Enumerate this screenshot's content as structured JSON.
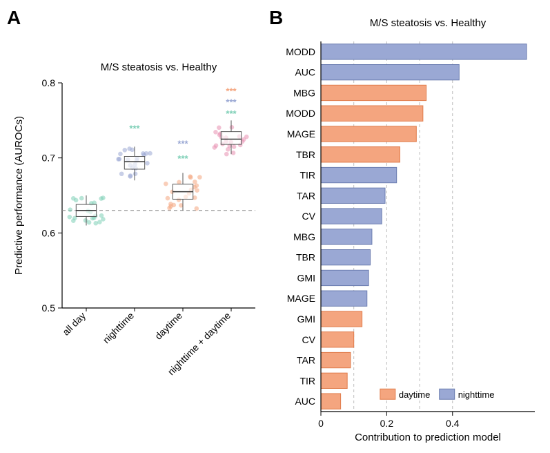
{
  "panelA": {
    "label": "A",
    "title": "M/S steatosis vs. Healthy",
    "ylabel": "Predictive performance (AUROCs)",
    "ylim": [
      0.5,
      0.8
    ],
    "yticks": [
      0.5,
      0.6,
      0.7,
      0.8
    ],
    "ref_line": 0.63,
    "categories": [
      "all day",
      "nighttime",
      "daytime",
      "nighttime + daytime"
    ],
    "colors": {
      "all day": "#7dcfb6",
      "nighttime": "#9aa8d4",
      "daytime": "#f4a57f",
      "nighttime + daytime": "#e88fb0"
    },
    "medians": {
      "all day": 0.63,
      "nighttime": 0.695,
      "daytime": 0.655,
      "nighttime + daytime": 0.725
    },
    "iqr": {
      "all day": [
        0.622,
        0.638
      ],
      "nighttime": [
        0.685,
        0.702
      ],
      "daytime": [
        0.645,
        0.665
      ],
      "nighttime + daytime": [
        0.718,
        0.735
      ]
    },
    "whisker": {
      "all day": [
        0.61,
        0.65
      ],
      "nighttime": [
        0.67,
        0.715
      ],
      "daytime": [
        0.63,
        0.68
      ],
      "nighttime + daytime": [
        0.705,
        0.75
      ]
    },
    "sig": {
      "nighttime": [
        {
          "color": "#7dcfb6",
          "y": 0.735
        }
      ],
      "daytime": [
        {
          "color": "#9aa8d4",
          "y": 0.715
        },
        {
          "color": "#7dcfb6",
          "y": 0.695
        }
      ],
      "nighttime + daytime": [
        {
          "color": "#f4a57f",
          "y": 0.785
        },
        {
          "color": "#9aa8d4",
          "y": 0.77
        },
        {
          "color": "#7dcfb6",
          "y": 0.755
        }
      ]
    },
    "sig_text": "***",
    "background_color": "#ffffff",
    "tick_fontsize": 14,
    "label_fontsize": 15,
    "title_fontsize": 15
  },
  "panelB": {
    "label": "B",
    "title": "M/S steatosis vs. Healthy",
    "xlabel": "Contribution to prediction model",
    "xlim": [
      0,
      0.65
    ],
    "xticks": [
      0,
      0.2,
      0.4
    ],
    "xgrid": [
      0,
      0.1,
      0.2,
      0.3,
      0.4
    ],
    "legend": {
      "daytime": {
        "label": "daytime",
        "color": "#f4a57f",
        "stroke": "#e07b4a"
      },
      "nighttime": {
        "label": "nighttime",
        "color": "#9aa8d4",
        "stroke": "#6b7db0"
      }
    },
    "bars": [
      {
        "name": "MODD",
        "value": 0.625,
        "group": "nighttime"
      },
      {
        "name": "AUC",
        "value": 0.42,
        "group": "nighttime"
      },
      {
        "name": "MBG",
        "value": 0.32,
        "group": "daytime"
      },
      {
        "name": "MODD",
        "value": 0.31,
        "group": "daytime"
      },
      {
        "name": "MAGE",
        "value": 0.29,
        "group": "daytime"
      },
      {
        "name": "TBR",
        "value": 0.24,
        "group": "daytime"
      },
      {
        "name": "TIR",
        "value": 0.23,
        "group": "nighttime"
      },
      {
        "name": "TAR",
        "value": 0.195,
        "group": "nighttime"
      },
      {
        "name": "CV",
        "value": 0.185,
        "group": "nighttime"
      },
      {
        "name": "MBG",
        "value": 0.155,
        "group": "nighttime"
      },
      {
        "name": "TBR",
        "value": 0.15,
        "group": "nighttime"
      },
      {
        "name": "GMI",
        "value": 0.145,
        "group": "nighttime"
      },
      {
        "name": "MAGE",
        "value": 0.14,
        "group": "nighttime"
      },
      {
        "name": "GMI",
        "value": 0.125,
        "group": "daytime"
      },
      {
        "name": "CV",
        "value": 0.1,
        "group": "daytime"
      },
      {
        "name": "TAR",
        "value": 0.09,
        "group": "daytime"
      },
      {
        "name": "TIR",
        "value": 0.08,
        "group": "daytime"
      },
      {
        "name": "AUC",
        "value": 0.06,
        "group": "daytime"
      }
    ],
    "tick_fontsize": 14,
    "label_fontsize": 15,
    "title_fontsize": 15,
    "bar_height": 0.75
  }
}
